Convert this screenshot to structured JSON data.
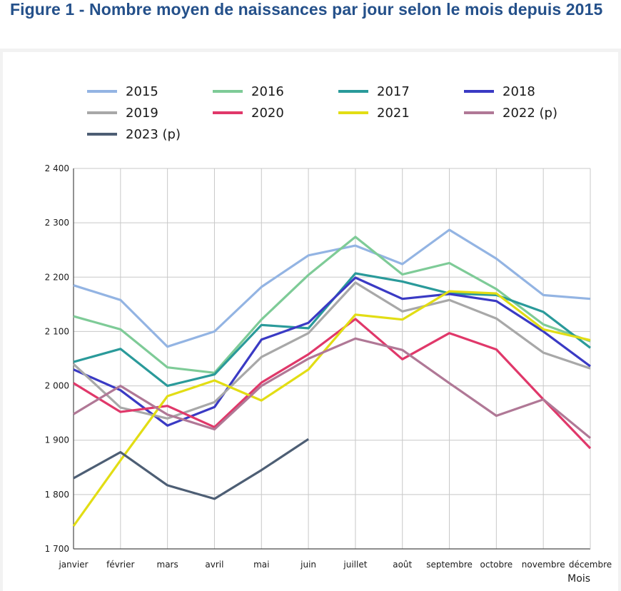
{
  "figure": {
    "title": "Figure 1 - Nombre moyen de naissances par jour selon le mois depuis 2015"
  },
  "chart_data": {
    "type": "line",
    "title": "",
    "xlabel": "Mois",
    "ylabel": "",
    "categories": [
      "janvier",
      "février",
      "mars",
      "avril",
      "mai",
      "juin",
      "juillet",
      "août",
      "septembre",
      "octobre",
      "novembre",
      "décembre"
    ],
    "ylim": [
      1700,
      2400
    ],
    "yticks": [
      1700,
      1800,
      1900,
      2000,
      2100,
      2200,
      2300,
      2400
    ],
    "ytick_labels": [
      "1 700",
      "1 800",
      "1 900",
      "2 000",
      "2 100",
      "2 200",
      "2 300",
      "2 400"
    ],
    "grid": true,
    "legend_position": "top",
    "series": [
      {
        "name": "2015",
        "color": "#93b4e3",
        "values": [
          2185,
          2158,
          2072,
          2100,
          2182,
          2240,
          2258,
          2224,
          2287,
          2234,
          2167,
          2160
        ]
      },
      {
        "name": "2016",
        "color": "#7ecb97",
        "values": [
          2128,
          2104,
          2034,
          2024,
          2122,
          2204,
          2274,
          2205,
          2226,
          2178,
          2113,
          2082
        ]
      },
      {
        "name": "2017",
        "color": "#2a9a9a",
        "values": [
          2044,
          2068,
          2000,
          2021,
          2112,
          2106,
          2207,
          2192,
          2170,
          2167,
          2136,
          2070
        ]
      },
      {
        "name": "2018",
        "color": "#3a3ac4",
        "values": [
          2030,
          1992,
          1927,
          1961,
          2085,
          2116,
          2199,
          2160,
          2169,
          2156,
          2100,
          2036
        ]
      },
      {
        "name": "2019",
        "color": "#a8a8a8",
        "values": [
          2040,
          1960,
          1940,
          1970,
          2053,
          2097,
          2190,
          2137,
          2158,
          2124,
          2061,
          2032
        ]
      },
      {
        "name": "2020",
        "color": "#e0386a",
        "values": [
          2005,
          1952,
          1963,
          1924,
          2006,
          2058,
          2123,
          2049,
          2097,
          2067,
          1975,
          1885
        ]
      },
      {
        "name": "2021",
        "color": "#e2dd14",
        "values": [
          1742,
          1863,
          1981,
          2010,
          1973,
          2030,
          2131,
          2122,
          2174,
          2170,
          2104,
          2084
        ]
      },
      {
        "name": "2022 (p)",
        "color": "#b07896",
        "values": [
          1948,
          2000,
          1947,
          1920,
          2000,
          2050,
          2087,
          2066,
          2005,
          1945,
          1975,
          1904
        ]
      },
      {
        "name": "2023 (p)",
        "color": "#4d5e74",
        "values": [
          1830,
          1878,
          1817,
          1792,
          1845,
          1902,
          null,
          null,
          null,
          null,
          null,
          null
        ]
      }
    ]
  }
}
